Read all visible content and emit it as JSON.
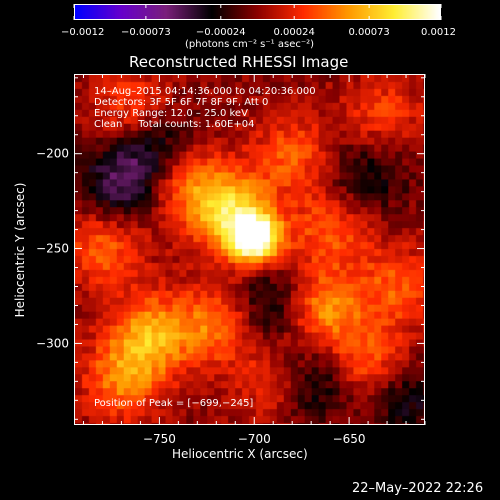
{
  "chart_data": {
    "type": "heatmap",
    "title": "Reconstructed RHESSI Image",
    "xlabel": "Heliocentric X (arcsec)",
    "ylabel": "Heliocentric Y (arcsec)",
    "xlim": [
      -795,
      -610
    ],
    "ylim": [
      -343,
      -158
    ],
    "x_ticks": [
      -750,
      -700,
      -650
    ],
    "y_ticks": [
      -200,
      -250,
      -300
    ],
    "x_tick_labels": [
      "−750",
      "−700",
      "−650"
    ],
    "y_tick_labels": [
      "−200",
      "−250",
      "−300"
    ],
    "colorbar": {
      "min": -0.0012,
      "max": 0.0012,
      "tick_values": [
        -0.0012,
        -0.00073,
        -0.00024,
        0.00024,
        0.00073,
        0.0012
      ],
      "tick_labels": [
        "−0.0012",
        "−0.00073",
        "−0.00024",
        "0.00024",
        "0.00073",
        "0.0012"
      ],
      "unit_label": "(photons cm⁻² s⁻¹ asec⁻²)",
      "colors": [
        "#0000ff",
        "#6600cc",
        "#7a1f7a",
        "#000000",
        "#8b0000",
        "#ff2a00",
        "#ff9900",
        "#ffee33",
        "#ffffff"
      ]
    },
    "annotations": [
      "14–Aug–2015 04:14:36.000 to 04:20:36.000",
      "Detectors: 3F 5F 6F 7F 8F 9F, Att 0",
      "Energy Range: 12.0 – 25.0 keV",
      "Clean     Total counts: 1.60E+04"
    ],
    "peak_label": "Position of Peak = [−699,−245]",
    "peak": {
      "x": -699,
      "y": -245,
      "value": 0.0012
    },
    "grid": false,
    "sources": [
      {
        "x": -699,
        "y": -245,
        "value": 0.0012
      },
      {
        "x": -712,
        "y": -232,
        "value": 0.00085
      },
      {
        "x": -738,
        "y": -212,
        "value": 0.0006
      },
      {
        "x": -755,
        "y": -296,
        "value": 0.00065
      },
      {
        "x": -665,
        "y": -282,
        "value": 0.0006
      },
      {
        "x": -720,
        "y": -290,
        "value": 0.0005
      },
      {
        "x": -660,
        "y": -240,
        "value": 0.0004
      },
      {
        "x": -640,
        "y": -310,
        "value": 0.00045
      },
      {
        "x": -780,
        "y": -250,
        "value": 0.00045
      },
      {
        "x": -625,
        "y": -270,
        "value": 0.0004
      },
      {
        "x": -680,
        "y": -200,
        "value": 0.0004
      },
      {
        "x": -765,
        "y": -175,
        "value": 0.00035
      },
      {
        "x": -632,
        "y": -180,
        "value": 0.00035
      },
      {
        "x": -770,
        "y": -320,
        "value": 0.0005
      },
      {
        "x": -690,
        "y": -320,
        "value": 0.0003
      },
      {
        "x": -748,
        "y": -198,
        "value": -0.0005
      },
      {
        "x": -770,
        "y": -215,
        "value": -0.00055
      },
      {
        "x": -690,
        "y": -280,
        "value": -0.00045
      },
      {
        "x": -668,
        "y": -320,
        "value": -0.0004
      },
      {
        "x": -640,
        "y": -210,
        "value": -0.00035
      },
      {
        "x": -620,
        "y": -330,
        "value": -0.00035
      }
    ]
  },
  "footer": {
    "timestamp": "22–May–2022 22:26"
  }
}
